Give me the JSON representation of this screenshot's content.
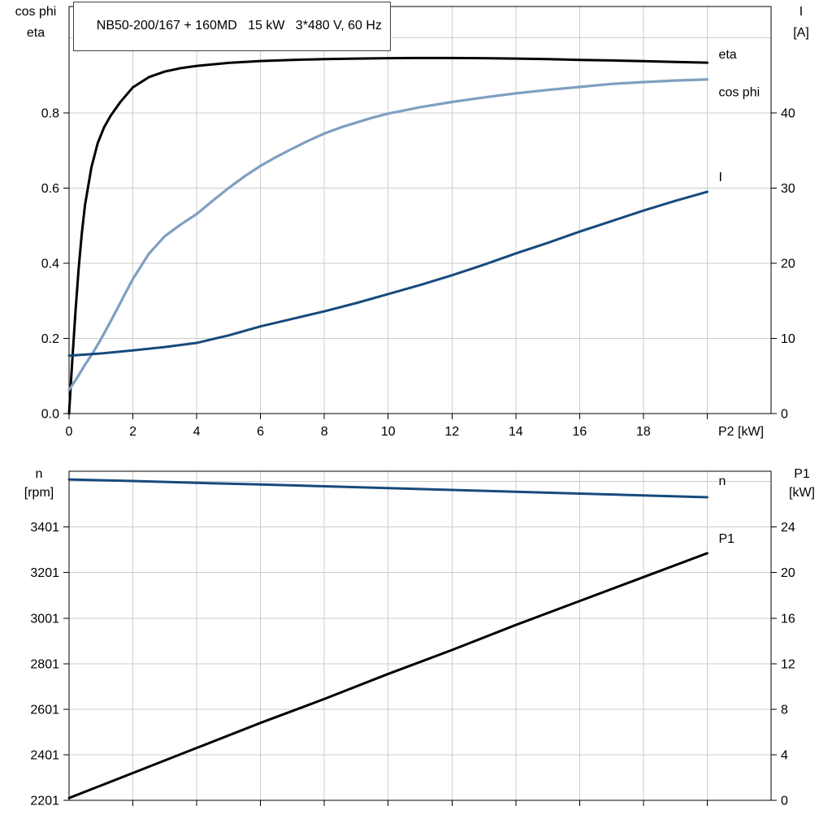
{
  "colors": {
    "axis": "#000000",
    "grid": "#cccccc",
    "background": "#ffffff"
  },
  "chart_data": [
    {
      "type": "line",
      "title": "NB50-200/167 + 160MD   15 kW   3*480 V, 60 Hz",
      "x_axis": {
        "label": "P2 [kW]",
        "min": 0,
        "max": 22,
        "ticks": [
          {
            "v": 0,
            "t": "0"
          },
          {
            "v": 2,
            "t": "2"
          },
          {
            "v": 4,
            "t": "4"
          },
          {
            "v": 6,
            "t": "6"
          },
          {
            "v": 8,
            "t": "8"
          },
          {
            "v": 10,
            "t": "10"
          },
          {
            "v": 12,
            "t": "12"
          },
          {
            "v": 14,
            "t": "14"
          },
          {
            "v": 16,
            "t": "16"
          },
          {
            "v": 18,
            "t": "18"
          }
        ],
        "tick_marks": [
          20
        ],
        "grid": [
          2,
          4,
          6,
          8,
          10,
          12,
          14,
          16,
          18,
          20
        ]
      },
      "y_left": {
        "header": [
          "cos phi",
          "eta"
        ],
        "min": 0,
        "max": 1.083,
        "ticks": [
          {
            "v": 0,
            "t": "0.0"
          },
          {
            "v": 0.2,
            "t": "0.2"
          },
          {
            "v": 0.4,
            "t": "0.4"
          },
          {
            "v": 0.6,
            "t": "0.6"
          },
          {
            "v": 0.8,
            "t": "0.8"
          }
        ],
        "grid": [
          0.2,
          0.4,
          0.6,
          0.8,
          1.0
        ]
      },
      "y_right": {
        "header": [
          "I",
          "[A]"
        ],
        "min": 0,
        "max": 54.15,
        "ticks": [
          {
            "v": 0,
            "t": "0"
          },
          {
            "v": 10,
            "t": "10"
          },
          {
            "v": 20,
            "t": "20"
          },
          {
            "v": 30,
            "t": "30"
          },
          {
            "v": 40,
            "t": "40"
          }
        ]
      },
      "series": [
        {
          "name": "eta",
          "label": "eta",
          "axis": "left",
          "color": "#000000",
          "width": 3,
          "label_dy": -5,
          "x": [
            0,
            0.1,
            0.2,
            0.3,
            0.4,
            0.5,
            0.7,
            0.9,
            1.1,
            1.3,
            1.6,
            2,
            2.5,
            3,
            3.5,
            4,
            5,
            6,
            7,
            8,
            9,
            10,
            11,
            12,
            13,
            14,
            15,
            16,
            17,
            18,
            19,
            20
          ],
          "y": [
            0,
            0.14,
            0.27,
            0.385,
            0.48,
            0.555,
            0.655,
            0.72,
            0.762,
            0.792,
            0.828,
            0.868,
            0.895,
            0.91,
            0.919,
            0.925,
            0.933,
            0.938,
            0.941,
            0.943,
            0.9445,
            0.9455,
            0.946,
            0.946,
            0.9455,
            0.9445,
            0.943,
            0.941,
            0.9395,
            0.9375,
            0.9355,
            0.9335
          ]
        },
        {
          "name": "cos phi",
          "label": "cos phi",
          "axis": "left",
          "color": "#7f9fc1",
          "width": 3.2,
          "label_dy": 21,
          "x": [
            0,
            0.25,
            0.5,
            0.75,
            1,
            1.25,
            1.5,
            1.75,
            2,
            2.5,
            3,
            3.5,
            4,
            4.5,
            5,
            5.5,
            6,
            6.5,
            7,
            7.5,
            8,
            8.5,
            9,
            9.5,
            10,
            11,
            12,
            13,
            14,
            15,
            16,
            17,
            18,
            19,
            20
          ],
          "y": [
            0.063,
            0.095,
            0.13,
            0.162,
            0.198,
            0.237,
            0.277,
            0.318,
            0.358,
            0.425,
            0.472,
            0.503,
            0.531,
            0.566,
            0.6,
            0.631,
            0.659,
            0.683,
            0.705,
            0.726,
            0.745,
            0.761,
            0.774,
            0.787,
            0.798,
            0.815,
            0.829,
            0.841,
            0.852,
            0.861,
            0.869,
            0.877,
            0.882,
            0.886,
            0.889
          ]
        },
        {
          "name": "I",
          "label": "I",
          "axis": "right",
          "color": "#174a7c",
          "width": 3,
          "label_dy": -13,
          "x": [
            0,
            1,
            2,
            3,
            4,
            5,
            6,
            7,
            8,
            9,
            10,
            11,
            12,
            13,
            14,
            15,
            16,
            17,
            18,
            19,
            20
          ],
          "y": [
            7.7,
            8.0,
            8.4,
            8.85,
            9.4,
            10.4,
            11.6,
            12.6,
            13.6,
            14.7,
            15.9,
            17.1,
            18.4,
            19.8,
            21.3,
            22.7,
            24.2,
            25.6,
            27.0,
            28.3,
            29.5
          ]
        }
      ]
    },
    {
      "type": "line",
      "title": "",
      "x_axis": {
        "label": "",
        "min": 0,
        "max": 22,
        "ticks": [],
        "tick_marks": [
          2,
          4,
          6,
          8,
          10,
          12,
          14,
          16,
          18,
          20
        ],
        "grid": [
          2,
          4,
          6,
          8,
          10,
          12,
          14,
          16,
          18,
          20
        ]
      },
      "y_left": {
        "header": [
          "n",
          "[rpm]"
        ],
        "min": 2201,
        "max": 3646,
        "ticks": [
          {
            "v": 2201,
            "t": "2201"
          },
          {
            "v": 2401,
            "t": "2401"
          },
          {
            "v": 2601,
            "t": "2601"
          },
          {
            "v": 2801,
            "t": "2801"
          },
          {
            "v": 3001,
            "t": "3001"
          },
          {
            "v": 3201,
            "t": "3201"
          },
          {
            "v": 3401,
            "t": "3401"
          }
        ],
        "grid": [
          2401,
          2601,
          2801,
          3001,
          3201,
          3401,
          3601
        ]
      },
      "y_right": {
        "header": [
          "P1",
          "[kW]"
        ],
        "min": 0,
        "max": 28.9,
        "ticks": [
          {
            "v": 0,
            "t": "0"
          },
          {
            "v": 4,
            "t": "4"
          },
          {
            "v": 8,
            "t": "8"
          },
          {
            "v": 12,
            "t": "12"
          },
          {
            "v": 16,
            "t": "16"
          },
          {
            "v": 20,
            "t": "20"
          },
          {
            "v": 24,
            "t": "24"
          }
        ]
      },
      "series": [
        {
          "name": "n",
          "label": "n",
          "axis": "left",
          "color": "#174a7c",
          "width": 3,
          "label_dy": -15,
          "x": [
            0,
            2,
            4,
            6,
            8,
            10,
            12,
            14,
            16,
            18,
            20
          ],
          "y": [
            3610,
            3603,
            3595,
            3588,
            3580,
            3572,
            3564,
            3556,
            3548,
            3540,
            3532
          ]
        },
        {
          "name": "P1",
          "label": "P1",
          "axis": "right",
          "color": "#000000",
          "width": 3,
          "label_dy": -13,
          "x": [
            0,
            2,
            4,
            6,
            8,
            10,
            12,
            14,
            16,
            18,
            20
          ],
          "y": [
            0.2,
            2.4,
            4.6,
            6.8,
            8.9,
            11.1,
            13.2,
            15.4,
            17.5,
            19.6,
            21.7
          ]
        }
      ]
    }
  ]
}
